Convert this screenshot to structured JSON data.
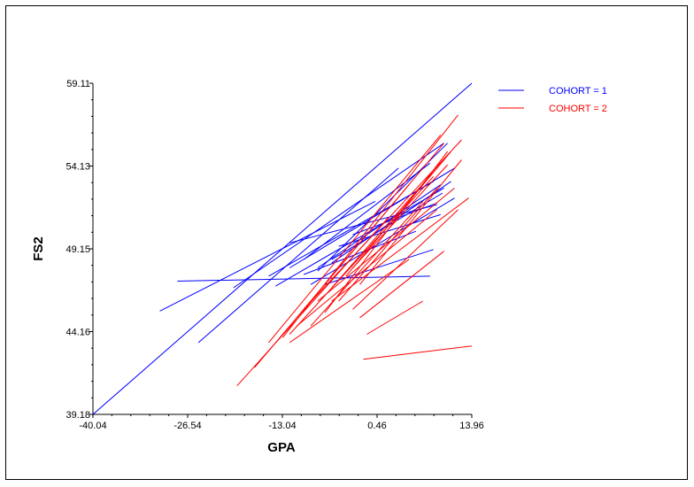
{
  "chart_data": {
    "type": "line",
    "xlabel": "GPA",
    "ylabel": "FS2",
    "xlim": [
      -40.04,
      13.96
    ],
    "ylim": [
      39.18,
      59.11
    ],
    "x_ticks": [
      "-40.04",
      "-26.54",
      "-13.04",
      "0.46",
      "13.96"
    ],
    "y_ticks": [
      "39.18",
      "44.16",
      "49.15",
      "54.13",
      "59.11"
    ],
    "grid": false,
    "legend_placement": "top-right",
    "series": [
      {
        "name": "COHORT = 1",
        "color": "#0000ff",
        "segments": [
          [
            [
              -40.04,
              39.18
            ],
            [
              13.96,
              59.11
            ]
          ],
          [
            [
              -30.5,
              45.4
            ],
            [
              0.2,
              52.0
            ]
          ],
          [
            [
              -25.0,
              43.5
            ],
            [
              3.5,
              54.0
            ]
          ],
          [
            [
              -28.0,
              47.2
            ],
            [
              8.0,
              47.5
            ]
          ],
          [
            [
              -20.0,
              46.8
            ],
            [
              10.0,
              55.5
            ]
          ],
          [
            [
              -15.0,
              47.5
            ],
            [
              8.5,
              53.2
            ]
          ],
          [
            [
              -12.0,
              48.0
            ],
            [
              11.5,
              54.0
            ]
          ],
          [
            [
              -14.0,
              46.9
            ],
            [
              10.0,
              52.8
            ]
          ],
          [
            [
              -10.0,
              48.5
            ],
            [
              8.0,
              54.3
            ]
          ],
          [
            [
              -8.0,
              48.0
            ],
            [
              9.5,
              53.0
            ]
          ],
          [
            [
              -12.0,
              49.5
            ],
            [
              9.0,
              51.8
            ]
          ],
          [
            [
              -9.0,
              47.0
            ],
            [
              11.5,
              52.2
            ]
          ],
          [
            [
              -6.0,
              48.5
            ],
            [
              9.8,
              52.5
            ]
          ],
          [
            [
              -5.0,
              49.3
            ],
            [
              9.5,
              51.2
            ]
          ],
          [
            [
              -10.0,
              47.6
            ],
            [
              6.0,
              50.2
            ]
          ],
          [
            [
              -6.0,
              48.3
            ],
            [
              11.0,
              53.2
            ]
          ],
          [
            [
              -3.0,
              50.0
            ],
            [
              9.0,
              51.9
            ]
          ],
          [
            [
              -7.0,
              47.0
            ],
            [
              8.5,
              49.1
            ]
          ],
          [
            [
              -8.0,
              47.8
            ],
            [
              10.5,
              55.5
            ]
          ]
        ]
      },
      {
        "name": "COHORT = 2",
        "color": "#ff0000",
        "segments": [
          [
            [
              -19.5,
              40.9
            ],
            [
              2.0,
              51.0
            ]
          ],
          [
            [
              -17.0,
              42.0
            ],
            [
              5.0,
              53.0
            ]
          ],
          [
            [
              -15.0,
              43.5
            ],
            [
              9.5,
              56.0
            ]
          ],
          [
            [
              -13.0,
              43.8
            ],
            [
              12.0,
              57.2
            ]
          ],
          [
            [
              -11.0,
              45.0
            ],
            [
              10.0,
              55.5
            ]
          ],
          [
            [
              -12.0,
              44.0
            ],
            [
              8.5,
              53.5
            ]
          ],
          [
            [
              -10.0,
              45.5
            ],
            [
              12.5,
              55.7
            ]
          ],
          [
            [
              -9.0,
              44.5
            ],
            [
              7.0,
              52.0
            ]
          ],
          [
            [
              -7.0,
              45.3
            ],
            [
              10.5,
              55.0
            ]
          ],
          [
            [
              -6.0,
              46.8
            ],
            [
              10.0,
              54.5
            ]
          ],
          [
            [
              -5.0,
              46.0
            ],
            [
              9.0,
              52.8
            ]
          ],
          [
            [
              -4.0,
              47.5
            ],
            [
              11.0,
              55.0
            ]
          ],
          [
            [
              -3.0,
              48.0
            ],
            [
              10.5,
              54.2
            ]
          ],
          [
            [
              -12.0,
              43.5
            ],
            [
              5.0,
              48.5
            ]
          ],
          [
            [
              -3.0,
              45.5
            ],
            [
              12.0,
              51.5
            ]
          ],
          [
            [
              -2.0,
              45.0
            ],
            [
              10.0,
              49.0
            ]
          ],
          [
            [
              -1.0,
              44.0
            ],
            [
              7.0,
              46.0
            ]
          ],
          [
            [
              -6.0,
              46.0
            ],
            [
              13.5,
              52.2
            ]
          ],
          [
            [
              -1.5,
              42.5
            ],
            [
              13.96,
              43.3
            ]
          ],
          [
            [
              -11.0,
              44.5
            ],
            [
              9.0,
              51.5
            ]
          ],
          [
            [
              -8.0,
              46.0
            ],
            [
              11.5,
              52.8
            ]
          ],
          [
            [
              -2.0,
              47.0
            ],
            [
              12.5,
              54.5
            ]
          ]
        ]
      }
    ]
  }
}
